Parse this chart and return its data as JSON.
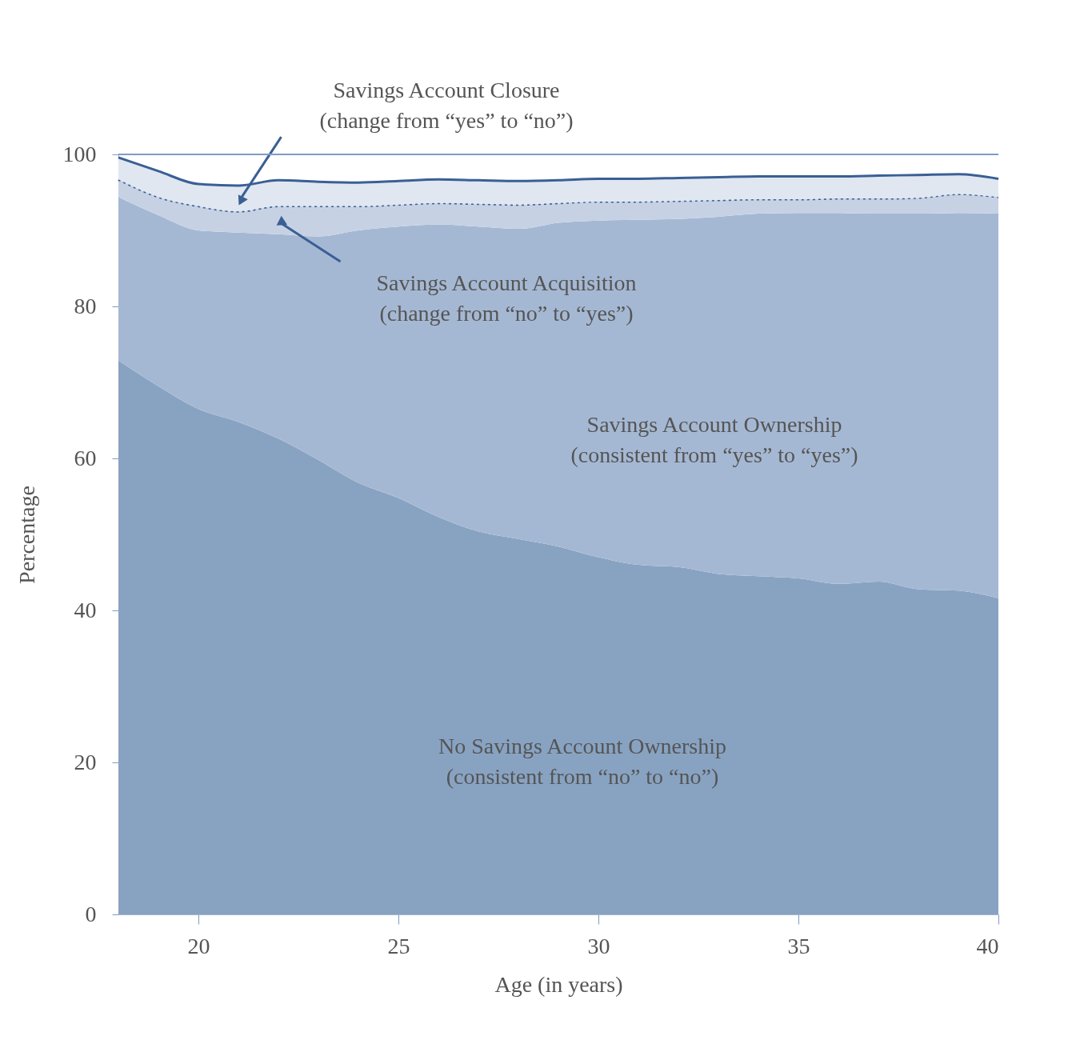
{
  "chart_data": {
    "type": "area",
    "stacked": true,
    "xlabel": "Age (in years)",
    "ylabel": "Percentage",
    "x": [
      18,
      19,
      20,
      21,
      22,
      23,
      24,
      25,
      26,
      27,
      28,
      29,
      30,
      31,
      32,
      33,
      34,
      35,
      36,
      37,
      38,
      39,
      40
    ],
    "xlim": [
      18,
      40
    ],
    "xticks": [
      20,
      25,
      30,
      35,
      40
    ],
    "ylim": [
      0,
      100
    ],
    "yticks": [
      0,
      20,
      40,
      60,
      80,
      100
    ],
    "grid": false,
    "series": [
      {
        "name": "No Savings Account Ownership\n(consistent from “no” to “no”)",
        "color": "#88a3c2",
        "values": [
          72.9,
          69.5,
          66.5,
          64.8,
          62.6,
          59.8,
          56.8,
          54.8,
          52.3,
          50.4,
          49.4,
          48.4,
          47.0,
          46.0,
          45.7,
          44.8,
          44.5,
          44.2,
          43.5,
          43.8,
          42.8,
          42.6,
          41.6
        ]
      },
      {
        "name": "Savings Account Ownership\n(consistent from “yes” to “yes”)",
        "color": "#a5b8d3",
        "values": [
          21.5,
          22.5,
          23.5,
          24.9,
          26.9,
          29.4,
          33.2,
          35.7,
          38.5,
          40.1,
          40.8,
          42.6,
          44.3,
          45.4,
          45.8,
          47.0,
          47.7,
          48.1,
          48.8,
          48.4,
          49.4,
          49.7,
          50.6
        ]
      },
      {
        "name": "Savings Account Acquisition\n(change from “no” to “yes”)",
        "color": "#c6d2e4",
        "line_style": "dotted",
        "values": [
          2.3,
          2.4,
          3.2,
          2.8,
          3.7,
          4.0,
          3.2,
          2.9,
          2.8,
          3.0,
          3.2,
          2.6,
          2.5,
          2.4,
          2.4,
          2.2,
          1.9,
          1.8,
          1.9,
          2.0,
          2.1,
          2.5,
          2.2
        ]
      },
      {
        "name": "Savings Account Closure\n(change from “yes” to “no”)",
        "color": "#e0e7f1",
        "line_style": "solid",
        "values": [
          2.9,
          3.4,
          2.9,
          3.4,
          3.4,
          3.2,
          3.1,
          3.1,
          3.1,
          3.1,
          3.1,
          3.0,
          3.0,
          3.0,
          3.0,
          3.0,
          3.0,
          3.0,
          2.9,
          3.0,
          3.0,
          2.6,
          2.4
        ]
      }
    ]
  }
}
